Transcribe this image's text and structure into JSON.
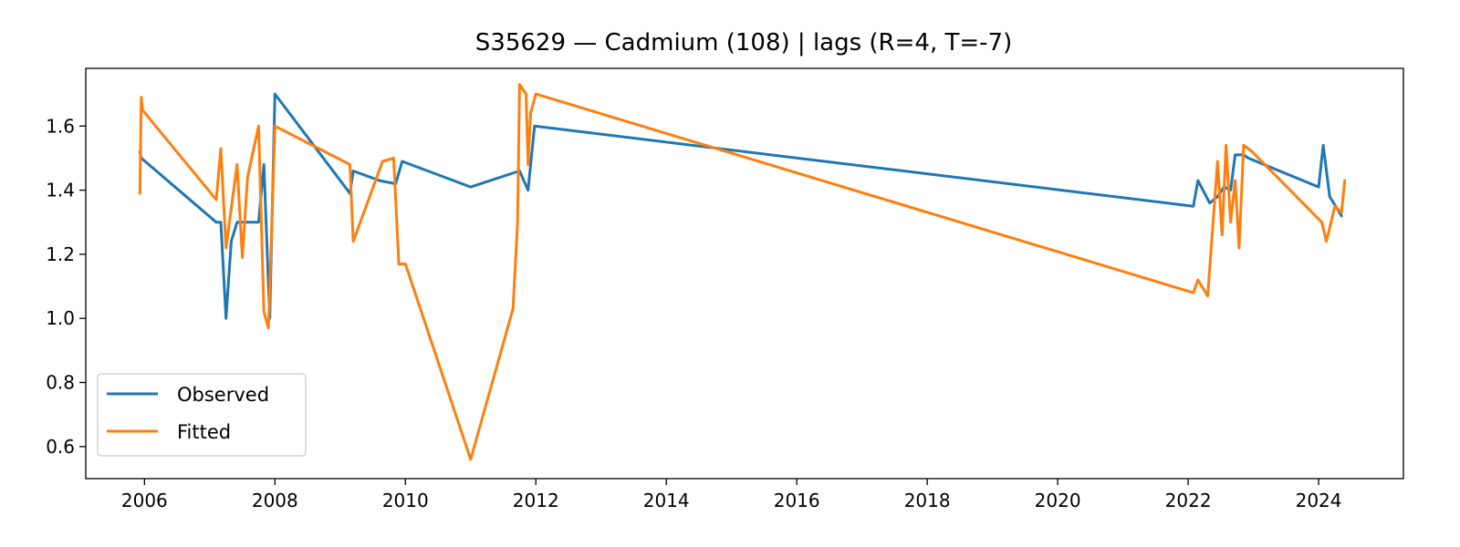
{
  "chart_data": {
    "type": "line",
    "title": "S35629 — Cadmium (108) | lags (R=4, T=-7)",
    "xlabel": "",
    "ylabel": "",
    "xlim": [
      2005.1,
      2025.3
    ],
    "ylim": [
      0.5,
      1.78
    ],
    "x_ticks": [
      2006,
      2008,
      2010,
      2012,
      2014,
      2016,
      2018,
      2020,
      2022,
      2024
    ],
    "x_tick_labels": [
      "2006",
      "2008",
      "2010",
      "2012",
      "2014",
      "2016",
      "2018",
      "2020",
      "2022",
      "2024"
    ],
    "y_ticks": [
      0.6,
      0.8,
      1.0,
      1.2,
      1.4,
      1.6
    ],
    "y_tick_labels": [
      "0.6",
      "0.8",
      "1.0",
      "1.2",
      "1.4",
      "1.6"
    ],
    "grid": false,
    "legend_position": "lower-left",
    "series": [
      {
        "name": "Observed",
        "color": "#1f77b4",
        "x": [
          2005.93,
          2005.95,
          2007.1,
          2007.17,
          2007.25,
          2007.33,
          2007.42,
          2007.6,
          2007.75,
          2007.83,
          2007.92,
          2008.0,
          2009.15,
          2009.2,
          2009.6,
          2009.85,
          2009.95,
          2011.0,
          2011.75,
          2011.88,
          2011.98,
          2022.08,
          2022.15,
          2022.33,
          2022.45,
          2022.55,
          2022.65,
          2022.72,
          2022.85,
          2022.92,
          2024.0,
          2024.07,
          2024.17,
          2024.35
        ],
        "y": [
          1.52,
          1.5,
          1.3,
          1.3,
          1.0,
          1.24,
          1.3,
          1.3,
          1.3,
          1.48,
          1.0,
          1.7,
          1.39,
          1.46,
          1.43,
          1.42,
          1.49,
          1.41,
          1.46,
          1.4,
          1.6,
          1.35,
          1.43,
          1.36,
          1.38,
          1.41,
          1.4,
          1.51,
          1.51,
          1.5,
          1.41,
          1.54,
          1.38,
          1.32
        ]
      },
      {
        "name": "Fitted",
        "color": "#ff7f0e",
        "x": [
          2005.93,
          2005.95,
          2005.97,
          2007.1,
          2007.17,
          2007.25,
          2007.42,
          2007.5,
          2007.58,
          2007.75,
          2007.83,
          2007.9,
          2008.0,
          2009.15,
          2009.2,
          2009.65,
          2009.82,
          2009.9,
          2010.0,
          2011.0,
          2011.65,
          2011.72,
          2011.75,
          2011.85,
          2011.88,
          2011.92,
          2012.0,
          2022.08,
          2022.15,
          2022.3,
          2022.45,
          2022.52,
          2022.58,
          2022.65,
          2022.72,
          2022.78,
          2022.85,
          2022.92,
          2022.98,
          2024.05,
          2024.12,
          2024.25,
          2024.35,
          2024.4
        ],
        "y": [
          1.39,
          1.69,
          1.65,
          1.37,
          1.53,
          1.22,
          1.48,
          1.19,
          1.44,
          1.6,
          1.02,
          0.97,
          1.6,
          1.48,
          1.24,
          1.49,
          1.5,
          1.17,
          1.17,
          0.56,
          1.03,
          1.3,
          1.73,
          1.7,
          1.48,
          1.64,
          1.7,
          1.08,
          1.12,
          1.07,
          1.49,
          1.26,
          1.54,
          1.3,
          1.43,
          1.22,
          1.54,
          1.53,
          1.52,
          1.3,
          1.24,
          1.35,
          1.33,
          1.43
        ]
      }
    ]
  }
}
